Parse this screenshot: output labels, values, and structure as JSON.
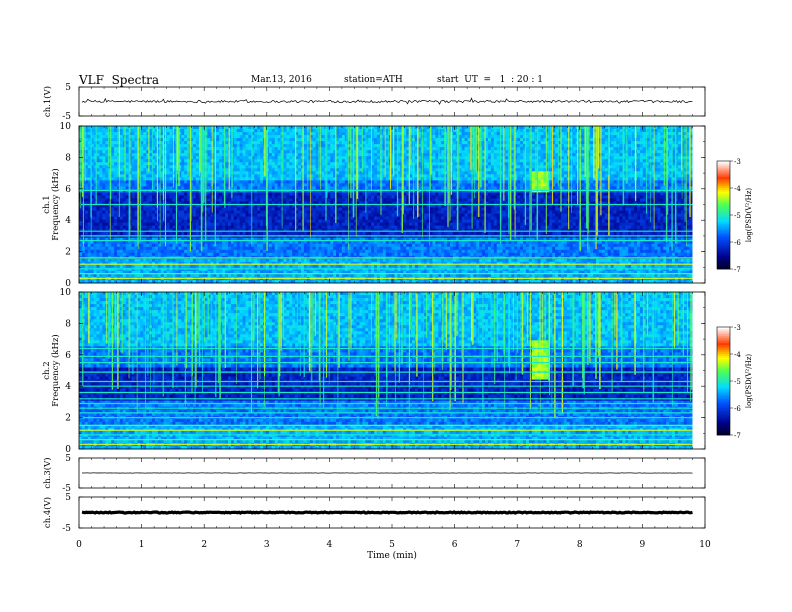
{
  "header": {
    "title": "VLF  Spectra",
    "date": "Mar.13, 2016",
    "station": "station=ATH",
    "start": "start  UT  =   1  : 20 : 1"
  },
  "chart_data": {
    "type": "heatmap",
    "xlabel": "Time  (min)",
    "xlim": [
      0,
      10
    ],
    "xticks": [
      "0",
      "1",
      "2",
      "3",
      "4",
      "5",
      "6",
      "7",
      "8",
      "9",
      "10"
    ],
    "data_end_min": 9.8,
    "panels": [
      {
        "id": "ch1-voltage",
        "kind": "waveform",
        "ylabel": "ch.1(V)",
        "ylim": [
          -5,
          5
        ],
        "yticks": [
          "5",
          "-5"
        ],
        "baseline": 0,
        "amplitude": 0.4,
        "color": "#000000"
      },
      {
        "id": "ch1-spectrogram",
        "kind": "spectrogram",
        "ylabel": "ch.1\nFrequency (kHz)",
        "ylim": [
          0,
          10
        ],
        "yticks": [
          "0",
          "2",
          "4",
          "6",
          "8",
          "10"
        ],
        "colorbar": {
          "label": "log(PSD(V²/Hz)",
          "range": [
            -7,
            -3
          ],
          "ticks": [
            "-3",
            "-4",
            "-5",
            "-6",
            "-7"
          ]
        },
        "tonal_lines_khz": [
          0.3,
          0.6,
          0.9,
          1.2,
          1.6,
          2.7,
          3.0,
          3.3,
          5.0,
          5.9
        ],
        "quiet_band_khz": [
          2.8,
          5.8
        ],
        "burst": {
          "t_min": [
            7.2,
            7.5
          ],
          "f_khz": [
            5.8,
            7.2
          ]
        }
      },
      {
        "id": "ch2-spectrogram",
        "kind": "spectrogram",
        "ylabel": "ch.2\nFrequency (kHz)",
        "ylim": [
          0,
          10
        ],
        "yticks": [
          "0",
          "2",
          "4",
          "6",
          "8",
          "10"
        ],
        "colorbar": {
          "label": "log(PSD(V²/Hz)",
          "range": [
            -7,
            -3
          ],
          "ticks": [
            "-3",
            "-4",
            "-5",
            "-6",
            "-7"
          ]
        },
        "tonal_lines_khz": [
          0.3,
          0.6,
          0.9,
          1.2,
          1.5,
          2.0,
          2.3,
          2.6,
          2.9,
          3.2,
          3.6,
          4.0,
          4.3,
          4.9,
          5.5,
          5.9,
          6.4
        ],
        "quiet_band_khz": [
          3.0,
          5.2
        ],
        "burst": {
          "t_min": [
            7.2,
            7.5
          ],
          "f_khz": [
            4.5,
            7.0
          ]
        }
      },
      {
        "id": "ch3-voltage",
        "kind": "waveform",
        "ylabel": "ch.3(V)",
        "ylim": [
          -5,
          5
        ],
        "yticks": [
          "5",
          "-5"
        ],
        "baseline": 0,
        "amplitude": 0.05,
        "color": "#000000"
      },
      {
        "id": "ch4-voltage",
        "kind": "waveform",
        "ylabel": "ch.4(V)",
        "ylim": [
          -5,
          5
        ],
        "yticks": [
          "5",
          "-5"
        ],
        "baseline": 0,
        "amplitude": 0.15,
        "color": "#000000"
      }
    ]
  }
}
